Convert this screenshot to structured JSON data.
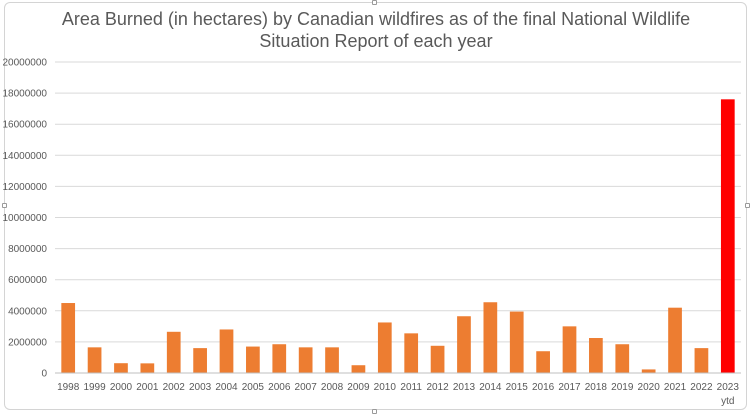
{
  "chart_data": {
    "type": "bar",
    "title_line1": "Area Burned (in hectares) by Canadian wildfires as of the final National Wildlife",
    "title_line2": "Situation Report of each year",
    "xlabel": "",
    "ylabel": "",
    "ylim": [
      0,
      20000000
    ],
    "yticks": [
      "0",
      "2000000",
      "4000000",
      "6000000",
      "8000000",
      "10000000",
      "12000000",
      "14000000",
      "16000000",
      "18000000",
      "20000000"
    ],
    "grid": true,
    "legend": "none",
    "categories": [
      "1998",
      "1999",
      "2000",
      "2001",
      "2002",
      "2003",
      "2004",
      "2005",
      "2006",
      "2007",
      "2008",
      "2009",
      "2010",
      "2011",
      "2012",
      "2013",
      "2014",
      "2015",
      "2016",
      "2017",
      "2018",
      "2019",
      "2020",
      "2021",
      "2022",
      "2023"
    ],
    "category_sublabels": {
      "2023": "ytd"
    },
    "values": [
      4500000,
      1650000,
      630000,
      620000,
      2650000,
      1600000,
      2800000,
      1700000,
      1850000,
      1650000,
      1650000,
      500000,
      3250000,
      2550000,
      1750000,
      3650000,
      4550000,
      3950000,
      1400000,
      3000000,
      2250000,
      1850000,
      230000,
      4200000,
      1600000,
      17600000
    ],
    "colors": {
      "bar": "#ed7d31",
      "highlight": "#ff0000",
      "grid": "#d9d9d9",
      "axis": "#bfbfbf"
    },
    "highlight_index": 25
  }
}
